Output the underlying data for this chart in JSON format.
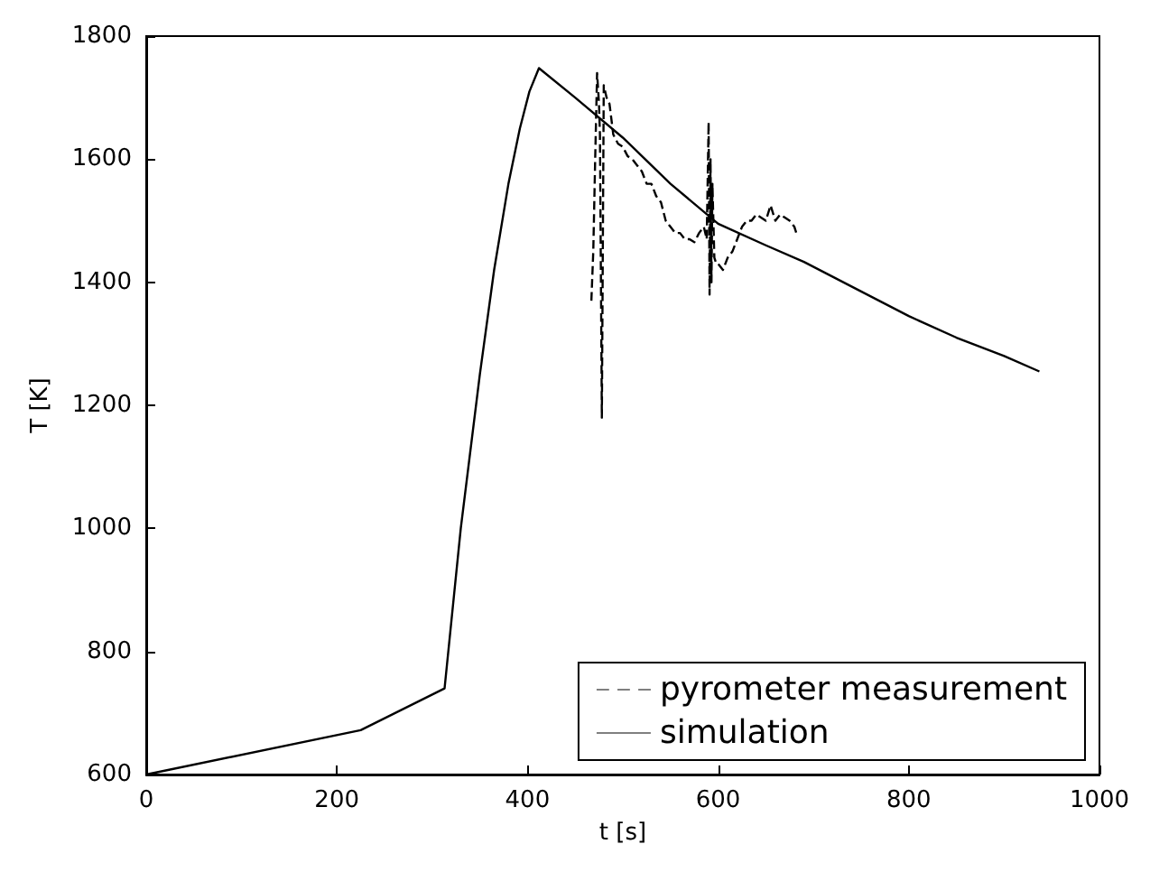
{
  "chart_data": {
    "type": "line",
    "xlabel": "t [s]",
    "ylabel": "T [K]",
    "xlim": [
      0,
      1000
    ],
    "xticks": [
      0,
      200,
      400,
      600,
      800,
      1000
    ],
    "ylim": [
      600,
      1800
    ],
    "yticks": [
      600,
      800,
      1000,
      1200,
      1400,
      1600,
      1800
    ],
    "grid": false,
    "legend": "bottom right",
    "marker": "none",
    "series": [
      {
        "name": "pyrometer measurement",
        "color": "#000000",
        "line_style": "dashed",
        "x": [
          467,
          469,
          471,
          473,
          475,
          476,
          478,
          480,
          483,
          486,
          490,
          495,
          500,
          505,
          510,
          515,
          520,
          525,
          530,
          535,
          540,
          545,
          550,
          555,
          560,
          565,
          570,
          575,
          580,
          585,
          588,
          590,
          591,
          592,
          593,
          594,
          596,
          598,
          600,
          605,
          610,
          615,
          620,
          625,
          630,
          635,
          640,
          645,
          650,
          655,
          660,
          665,
          670,
          675,
          680,
          682
        ],
        "values": [
          1370,
          1450,
          1600,
          1740,
          1690,
          1640,
          1180,
          1720,
          1700,
          1690,
          1640,
          1625,
          1620,
          1605,
          1600,
          1590,
          1580,
          1560,
          1560,
          1540,
          1530,
          1500,
          1490,
          1480,
          1480,
          1470,
          1470,
          1465,
          1480,
          1490,
          1470,
          1660,
          1380,
          1600,
          1400,
          1560,
          1440,
          1430,
          1430,
          1420,
          1440,
          1450,
          1470,
          1490,
          1500,
          1500,
          1510,
          1505,
          1500,
          1525,
          1500,
          1510,
          1505,
          1500,
          1490,
          1480
        ]
      },
      {
        "name": "simulation",
        "color": "#000000",
        "line_style": "solid",
        "x": [
          0,
          225,
          313,
          330,
          350,
          365,
          380,
          392,
          402,
          412,
          450,
          500,
          550,
          600,
          650,
          690,
          750,
          800,
          850,
          900,
          937
        ],
        "values": [
          600,
          672,
          740,
          1000,
          1250,
          1420,
          1560,
          1650,
          1710,
          1748,
          1700,
          1635,
          1560,
          1495,
          1460,
          1433,
          1385,
          1345,
          1310,
          1280,
          1255
        ]
      }
    ]
  }
}
